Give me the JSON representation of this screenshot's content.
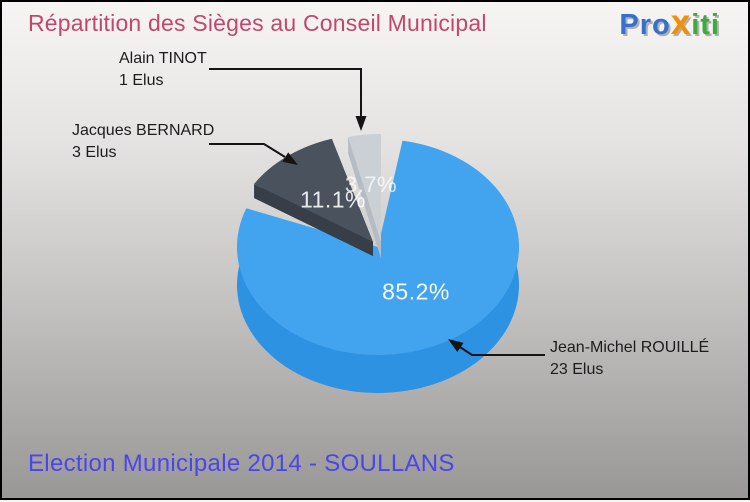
{
  "header": {
    "title": "Répartition des Sièges au Conseil Municipal",
    "title_color": "#c4476b",
    "logo": {
      "part_pro": "Pro",
      "part_x": "x",
      "part_iti": "iti",
      "pro_color": "#3470ce",
      "x_color": "#f19000",
      "iti_color": "#3ea93c"
    }
  },
  "footer": {
    "text": "Election Municipale 2014 - SOULLANS",
    "color": "#4c44ec"
  },
  "chart_data": {
    "type": "pie",
    "style": "3d-exploded",
    "title": "Répartition des Sièges au Conseil Municipal",
    "subtitle": "Election Municipale 2014 - SOULLANS",
    "unit": "Elus",
    "total_seats": 27,
    "legend_position": "callouts",
    "slices": [
      {
        "label": "Jean-Michel ROUILLÉ",
        "value": 23,
        "pct": "85.2%",
        "elus_text": "23 Elus",
        "color": "#42a3ef",
        "side_color": "#2e92e2"
      },
      {
        "label": "Jacques BERNARD",
        "value": 3,
        "pct": "11.1%",
        "elus_text": "3 Elus",
        "color": "#4a525d",
        "side_color": "#30363f"
      },
      {
        "label": "Alain TINOT",
        "value": 1,
        "pct": "3.7%",
        "elus_text": "1 Elus",
        "color": "#cbd0d5",
        "side_color": "#a9b0b8"
      }
    ]
  },
  "callout_line_color": "#141414"
}
